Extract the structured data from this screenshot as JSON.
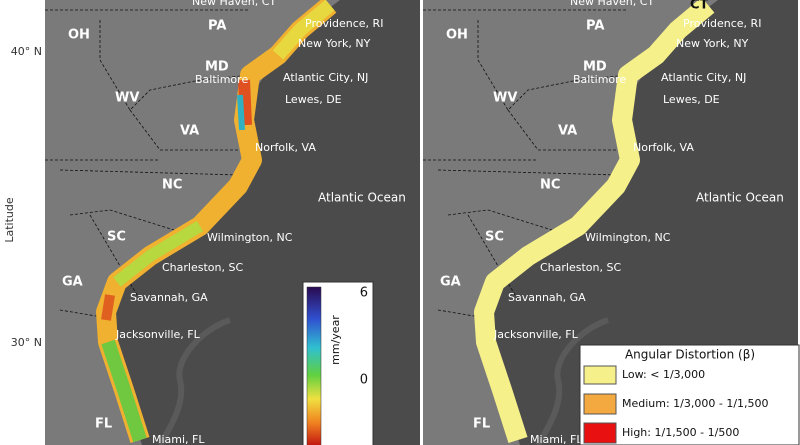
{
  "axis": {
    "label": "Latitude",
    "ticks": [
      "40° N",
      "30° N"
    ]
  },
  "left_map": {
    "states": [
      "OH",
      "PA",
      "MD",
      "WV",
      "VA",
      "NC",
      "SC",
      "GA",
      "FL"
    ],
    "cities": [
      "New Haven, CT",
      "Providence, RI",
      "New York, NY",
      "Baltimore",
      "Atlantic City, NJ",
      "Lewes, DE",
      "Norfolk, VA",
      "Wilmington, NC",
      "Charleston, SC",
      "Savannah, GA",
      "Jacksonville, FL",
      "Miami, FL"
    ],
    "ocean": "Atlantic Ocean",
    "colorbar": {
      "label": "mm/year",
      "ticks": [
        6,
        0
      ]
    }
  },
  "right_map": {
    "states": [
      "OH",
      "PA",
      "MD",
      "WV",
      "VA",
      "NC",
      "SC",
      "GA",
      "FL",
      "CT"
    ],
    "cities": [
      "New Haven, CT",
      "Providence, RI",
      "New York, NY",
      "Baltimore",
      "Atlantic City, NJ",
      "Lewes, DE",
      "Norfolk, VA",
      "Wilmington, NC",
      "Charleston, SC",
      "Savannah, GA",
      "Jacksonville, FL",
      "Miami, FL"
    ],
    "ocean": "Atlantic Ocean",
    "legend": {
      "title": "Angular Distortion (β)",
      "items": [
        "Low: < 1/3,000",
        "Medium: 1/3,000 - 1/1,500",
        "High: 1/1,500 - 1/500"
      ]
    }
  }
}
